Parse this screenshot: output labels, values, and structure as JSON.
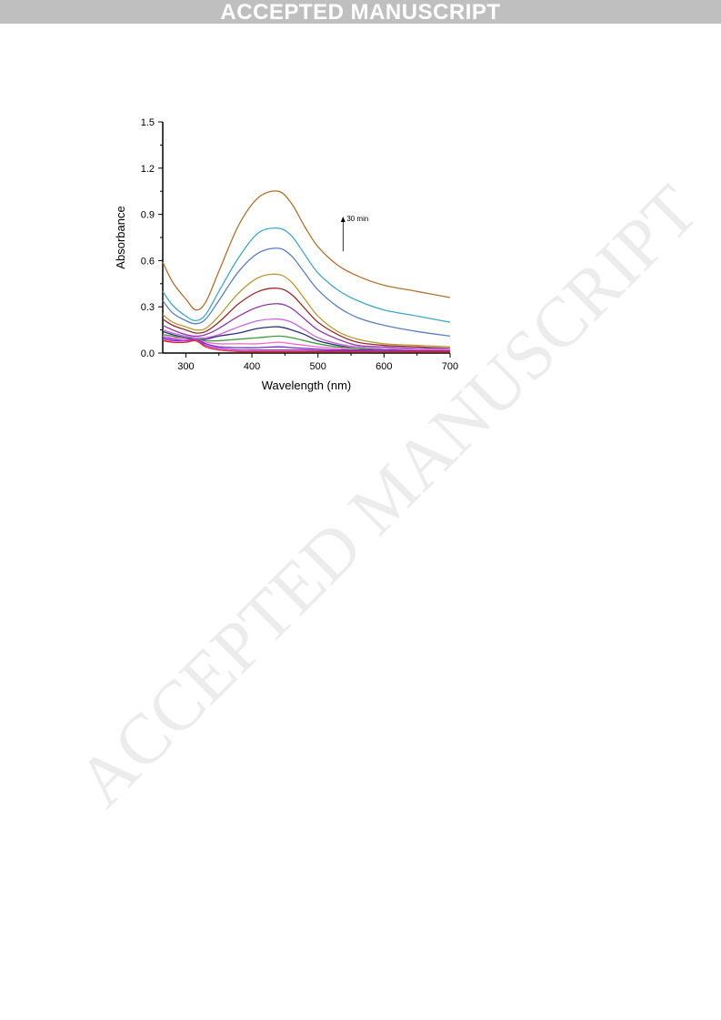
{
  "banner": {
    "text": "ACCEPTED MANUSCRIPT"
  },
  "watermark": {
    "text": "ACCEPTED MANUSCRIPT"
  },
  "chart_data": {
    "type": "line",
    "title": "",
    "xlabel": "Wavelength (nm)",
    "ylabel": "Absorbance",
    "xlim": [
      265,
      700
    ],
    "ylim": [
      0,
      1.5
    ],
    "x_ticks": [
      300,
      400,
      500,
      600,
      700
    ],
    "y_ticks": [
      0.0,
      0.3,
      0.6,
      0.9,
      1.2,
      1.5
    ],
    "x_tick_labels": [
      "300",
      "400",
      "500",
      "600",
      "700"
    ],
    "y_tick_labels": [
      "0.0",
      "0.3",
      "0.6",
      "0.9",
      "1.2",
      "1.5"
    ],
    "annotation": {
      "text": "30 min",
      "arrow_x": 538,
      "arrow_y_from": 0.66,
      "arrow_y_to": 0.88
    },
    "grid": false,
    "legend": "none",
    "x": [
      265,
      280,
      300,
      315,
      330,
      350,
      380,
      410,
      440,
      460,
      480,
      500,
      530,
      560,
      600,
      650,
      700
    ],
    "series": [
      {
        "color": "#b5702d",
        "values": [
          0.59,
          0.46,
          0.35,
          0.28,
          0.33,
          0.53,
          0.83,
          1.01,
          1.05,
          0.97,
          0.82,
          0.69,
          0.57,
          0.5,
          0.44,
          0.4,
          0.36
        ]
      },
      {
        "color": "#3fa7c9",
        "values": [
          0.4,
          0.31,
          0.24,
          0.21,
          0.25,
          0.4,
          0.62,
          0.78,
          0.81,
          0.76,
          0.64,
          0.52,
          0.41,
          0.34,
          0.28,
          0.24,
          0.2
        ]
      },
      {
        "color": "#5a7fc0",
        "values": [
          0.34,
          0.26,
          0.21,
          0.19,
          0.22,
          0.34,
          0.53,
          0.65,
          0.68,
          0.63,
          0.52,
          0.41,
          0.3,
          0.23,
          0.18,
          0.14,
          0.11
        ]
      },
      {
        "color": "#b79a35",
        "values": [
          0.25,
          0.2,
          0.17,
          0.15,
          0.16,
          0.24,
          0.39,
          0.49,
          0.51,
          0.46,
          0.35,
          0.24,
          0.14,
          0.09,
          0.06,
          0.05,
          0.04
        ]
      },
      {
        "color": "#9a2a2a",
        "values": [
          0.22,
          0.18,
          0.15,
          0.13,
          0.14,
          0.2,
          0.32,
          0.4,
          0.42,
          0.38,
          0.29,
          0.2,
          0.12,
          0.07,
          0.05,
          0.04,
          0.03
        ]
      },
      {
        "color": "#8e3aa8",
        "values": [
          0.18,
          0.15,
          0.12,
          0.11,
          0.12,
          0.16,
          0.24,
          0.3,
          0.32,
          0.29,
          0.22,
          0.15,
          0.09,
          0.05,
          0.04,
          0.03,
          0.03
        ]
      },
      {
        "color": "#c766d9",
        "values": [
          0.15,
          0.13,
          0.11,
          0.1,
          0.1,
          0.12,
          0.17,
          0.21,
          0.22,
          0.2,
          0.15,
          0.1,
          0.06,
          0.04,
          0.03,
          0.02,
          0.02
        ]
      },
      {
        "color": "#2d2d78",
        "values": [
          0.14,
          0.12,
          0.1,
          0.09,
          0.09,
          0.11,
          0.13,
          0.16,
          0.17,
          0.15,
          0.12,
          0.08,
          0.05,
          0.03,
          0.02,
          0.02,
          0.02
        ]
      },
      {
        "color": "#3f9a3f",
        "values": [
          0.12,
          0.11,
          0.09,
          0.09,
          0.08,
          0.08,
          0.09,
          0.1,
          0.11,
          0.1,
          0.08,
          0.06,
          0.04,
          0.03,
          0.02,
          0.02,
          0.02
        ]
      },
      {
        "color": "#ff66cc",
        "values": [
          0.11,
          0.1,
          0.09,
          0.08,
          0.07,
          0.06,
          0.06,
          0.06,
          0.07,
          0.06,
          0.05,
          0.04,
          0.03,
          0.02,
          0.02,
          0.02,
          0.02
        ]
      },
      {
        "color": "#6a2ad9",
        "values": [
          0.1,
          0.09,
          0.08,
          0.09,
          0.06,
          0.04,
          0.035,
          0.035,
          0.04,
          0.035,
          0.03,
          0.025,
          0.02,
          0.02,
          0.02,
          0.015,
          0.015
        ]
      },
      {
        "color": "#b02ad1",
        "values": [
          0.09,
          0.08,
          0.08,
          0.09,
          0.05,
          0.03,
          0.02,
          0.02,
          0.02,
          0.02,
          0.02,
          0.015,
          0.015,
          0.015,
          0.01,
          0.01,
          0.01
        ]
      },
      {
        "color": "#e02020",
        "values": [
          0.08,
          0.07,
          0.07,
          0.08,
          0.04,
          0.02,
          0.01,
          0.01,
          0.01,
          0.01,
          0.01,
          0.01,
          0.01,
          0.01,
          0.01,
          0.01,
          0.01
        ]
      }
    ]
  }
}
